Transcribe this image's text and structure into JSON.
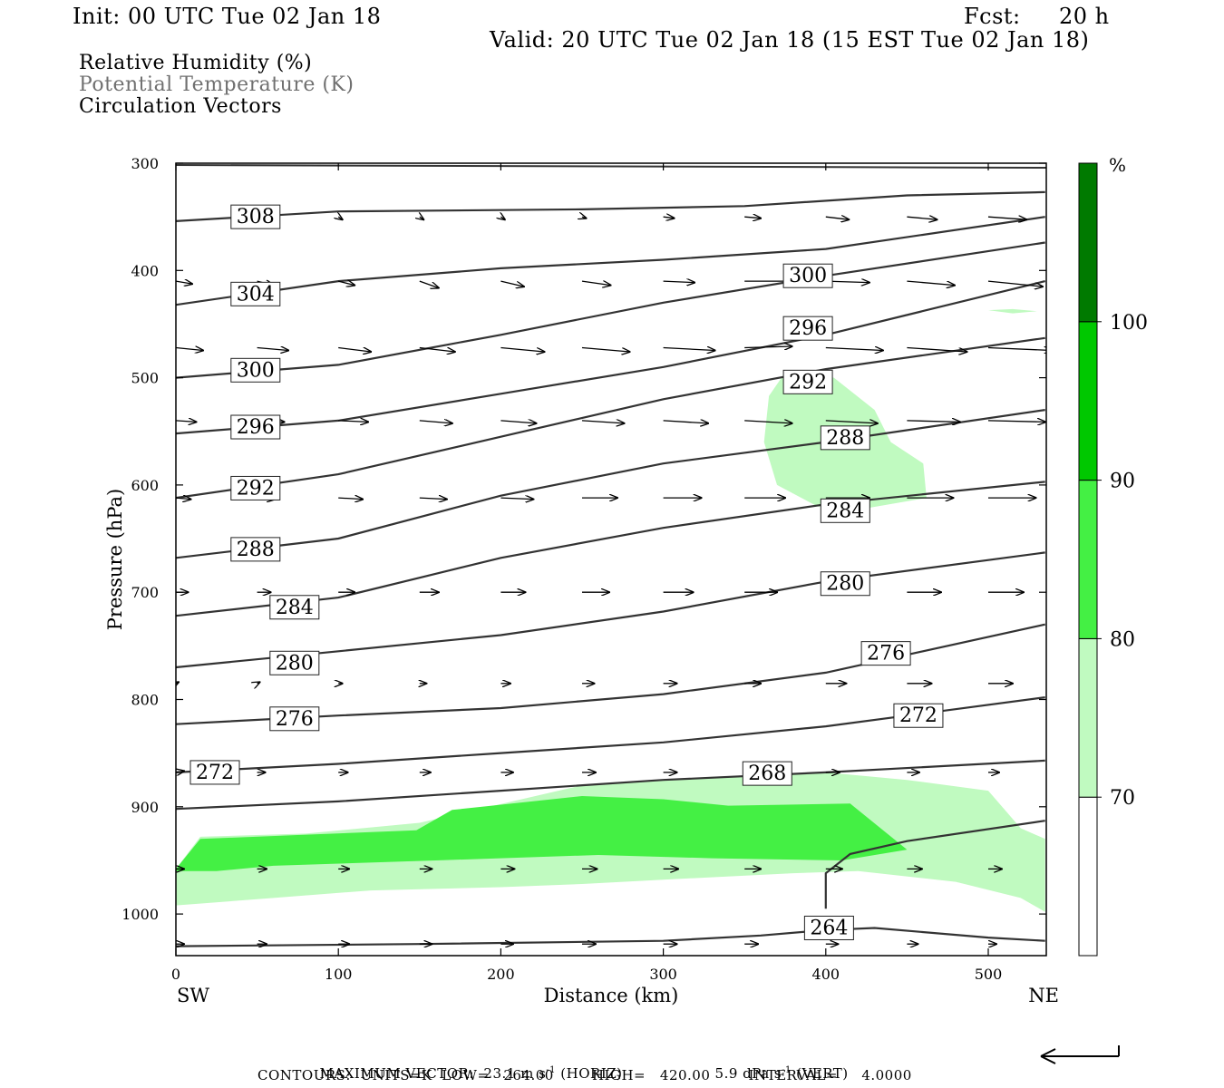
{
  "header": {
    "init": "Init: 00 UTC Tue 02 Jan 18",
    "fcst_label": "Fcst:",
    "fcst_value": "20 h",
    "valid": "Valid: 20 UTC Tue 02 Jan 18 (15 EST Tue 02 Jan 18)"
  },
  "legend": {
    "line1": "Relative Humidity (%)",
    "line2": "Potential Temperature (K)",
    "line3": "Circulation Vectors",
    "line2_color": "#707070"
  },
  "footer": {
    "line1_a": "MAXIMUM VECTOR:  23.1 m s",
    "line1_a_sup": "-1",
    "line1_b": " (HORIZ)",
    "line1_c": "5.9 dPa s",
    "line1_c_sup": "-1",
    "line1_d": " (VERT)",
    "line2": "CONTOURS:  UNITS=K  LOW=   264.00        HIGH=   420.00        INTERVAL=     4.0000"
  },
  "chart_data": {
    "type": "cross-section",
    "xlabel": "Distance (km)",
    "ylabel": "Pressure (hPa)",
    "x_left_label": "SW",
    "x_right_label": "NE",
    "xlim": [
      0,
      535
    ],
    "ylim": [
      1040,
      300
    ],
    "x_ticks": [
      0,
      100,
      200,
      300,
      400,
      500
    ],
    "y_ticks": [
      300,
      400,
      500,
      600,
      700,
      800,
      900,
      1000
    ],
    "colorbar": {
      "unit_label": "%",
      "levels": [
        70,
        80,
        90,
        100
      ],
      "colors": [
        "#ffffff",
        "#c0fac0",
        "#44f044",
        "#00c800",
        "#007a00"
      ]
    },
    "rh_shading": [
      {
        "level": "70-80",
        "color": "#c0fac0",
        "polygon": [
          [
            0,
            958
          ],
          [
            15,
            928
          ],
          [
            80,
            925
          ],
          [
            150,
            915
          ],
          [
            250,
            880
          ],
          [
            330,
            872
          ],
          [
            400,
            868
          ],
          [
            450,
            875
          ],
          [
            500,
            885
          ],
          [
            520,
            920
          ],
          [
            535,
            930
          ],
          [
            535,
            998
          ],
          [
            520,
            985
          ],
          [
            480,
            970
          ],
          [
            420,
            960
          ],
          [
            380,
            962
          ],
          [
            300,
            968
          ],
          [
            250,
            972
          ],
          [
            200,
            975
          ],
          [
            120,
            978
          ],
          [
            60,
            985
          ],
          [
            0,
            992
          ]
        ]
      },
      {
        "level": "80-90",
        "color": "#44f044",
        "polygon": [
          [
            0,
            958
          ],
          [
            15,
            930
          ],
          [
            80,
            926
          ],
          [
            148,
            922
          ],
          [
            170,
            903
          ],
          [
            250,
            890
          ],
          [
            300,
            893
          ],
          [
            340,
            899
          ],
          [
            415,
            897
          ],
          [
            450,
            940
          ],
          [
            410,
            950
          ],
          [
            330,
            948
          ],
          [
            260,
            945
          ],
          [
            160,
            950
          ],
          [
            60,
            955
          ],
          [
            25,
            960
          ],
          [
            0,
            960
          ]
        ]
      },
      {
        "level": "70-80",
        "color": "#c0fac0",
        "polygon": [
          [
            365,
            517
          ],
          [
            375,
            495
          ],
          [
            405,
            500
          ],
          [
            430,
            530
          ],
          [
            440,
            560
          ],
          [
            460,
            580
          ],
          [
            462,
            612
          ],
          [
            420,
            623
          ],
          [
            395,
            620
          ],
          [
            370,
            600
          ],
          [
            362,
            560
          ]
        ]
      },
      {
        "level": "70-80",
        "color": "#c0fac0",
        "polygon": [
          [
            500,
            437
          ],
          [
            515,
            436
          ],
          [
            530,
            438
          ],
          [
            515,
            440
          ]
        ]
      }
    ],
    "theta_contours": [
      {
        "value": 308,
        "points": [
          [
            0,
            354
          ],
          [
            100,
            345
          ],
          [
            250,
            343
          ],
          [
            350,
            340
          ],
          [
            450,
            330
          ],
          [
            535,
            327
          ]
        ]
      },
      {
        "value": 304,
        "points": [
          [
            0,
            432
          ],
          [
            100,
            410
          ],
          [
            200,
            398
          ],
          [
            300,
            390
          ],
          [
            400,
            380
          ],
          [
            535,
            350
          ]
        ]
      },
      {
        "value": 300,
        "points": [
          [
            0,
            500
          ],
          [
            100,
            488
          ],
          [
            200,
            460
          ],
          [
            300,
            430
          ],
          [
            400,
            405
          ],
          [
            535,
            374
          ]
        ]
      },
      {
        "value": 296,
        "points": [
          [
            0,
            552
          ],
          [
            100,
            540
          ],
          [
            200,
            515
          ],
          [
            300,
            490
          ],
          [
            400,
            460
          ],
          [
            535,
            410
          ]
        ]
      },
      {
        "value": 292,
        "points": [
          [
            0,
            612
          ],
          [
            100,
            590
          ],
          [
            200,
            555
          ],
          [
            300,
            520
          ],
          [
            400,
            492
          ],
          [
            535,
            463
          ]
        ]
      },
      {
        "value": 288,
        "points": [
          [
            0,
            668
          ],
          [
            100,
            650
          ],
          [
            200,
            610
          ],
          [
            300,
            580
          ],
          [
            400,
            560
          ],
          [
            535,
            530
          ]
        ]
      },
      {
        "value": 284,
        "points": [
          [
            0,
            722
          ],
          [
            100,
            705
          ],
          [
            200,
            668
          ],
          [
            300,
            640
          ],
          [
            400,
            618
          ],
          [
            535,
            597
          ]
        ]
      },
      {
        "value": 280,
        "points": [
          [
            0,
            770
          ],
          [
            100,
            755
          ],
          [
            200,
            740
          ],
          [
            300,
            718
          ],
          [
            400,
            690
          ],
          [
            535,
            663
          ]
        ]
      },
      {
        "value": 276,
        "points": [
          [
            0,
            823
          ],
          [
            100,
            815
          ],
          [
            200,
            808
          ],
          [
            300,
            795
          ],
          [
            400,
            775
          ],
          [
            535,
            730
          ]
        ]
      },
      {
        "value": 272,
        "points": [
          [
            0,
            868
          ],
          [
            100,
            860
          ],
          [
            200,
            850
          ],
          [
            300,
            840
          ],
          [
            400,
            825
          ],
          [
            535,
            798
          ]
        ]
      },
      {
        "value": 268,
        "points": [
          [
            0,
            902
          ],
          [
            100,
            895
          ],
          [
            200,
            885
          ],
          [
            300,
            875
          ],
          [
            400,
            868
          ],
          [
            535,
            857
          ]
        ]
      },
      {
        "value": 264,
        "points": [
          [
            400,
            995
          ],
          [
            400,
            962
          ],
          [
            415,
            944
          ],
          [
            450,
            932
          ],
          [
            535,
            913
          ]
        ]
      },
      {
        "value": 264,
        "points": [
          [
            0,
            1030
          ],
          [
            150,
            1028
          ],
          [
            300,
            1025
          ],
          [
            360,
            1020
          ],
          [
            400,
            1015
          ],
          [
            430,
            1013
          ],
          [
            500,
            1022
          ],
          [
            535,
            1025
          ]
        ]
      }
    ],
    "contour_labels": [
      {
        "text": "308",
        "x": 49,
        "p": 350
      },
      {
        "text": "304",
        "x": 49,
        "p": 422
      },
      {
        "text": "300",
        "x": 389,
        "p": 405
      },
      {
        "text": "296",
        "x": 389,
        "p": 454
      },
      {
        "text": "300",
        "x": 49,
        "p": 493
      },
      {
        "text": "292",
        "x": 389,
        "p": 504
      },
      {
        "text": "296",
        "x": 49,
        "p": 546
      },
      {
        "text": "288",
        "x": 412,
        "p": 556
      },
      {
        "text": "292",
        "x": 49,
        "p": 603
      },
      {
        "text": "284",
        "x": 412,
        "p": 624
      },
      {
        "text": "288",
        "x": 49,
        "p": 660
      },
      {
        "text": "280",
        "x": 412,
        "p": 692
      },
      {
        "text": "284",
        "x": 73,
        "p": 714
      },
      {
        "text": "276",
        "x": 437,
        "p": 757
      },
      {
        "text": "280",
        "x": 73,
        "p": 766
      },
      {
        "text": "272",
        "x": 457,
        "p": 815
      },
      {
        "text": "276",
        "x": 73,
        "p": 818
      },
      {
        "text": "272",
        "x": 24,
        "p": 868
      },
      {
        "text": "268",
        "x": 364,
        "p": 869
      },
      {
        "text": "264",
        "x": 402,
        "p": 1013
      }
    ],
    "vectors": [
      {
        "p": 350,
        "x": [
          100,
          150,
          200,
          250,
          300,
          350,
          400,
          450,
          500
        ],
        "u": [
          3,
          3,
          3,
          3,
          8,
          12,
          17,
          22,
          28
        ],
        "v": [
          -2,
          -2,
          -2,
          -1,
          -1,
          -1,
          -2,
          -2,
          -2
        ]
      },
      {
        "p": 410,
        "x": [
          0,
          50,
          100,
          150,
          200,
          250,
          300,
          350,
          400,
          450,
          500
        ],
        "u": [
          12,
          12,
          12,
          14,
          17,
          21,
          23,
          36,
          32,
          35,
          40
        ],
        "v": [
          -2,
          -3,
          -3,
          -5,
          -4,
          -3,
          -1,
          0,
          -1,
          -3,
          -4
        ]
      },
      {
        "p": 472,
        "x": [
          0,
          50,
          100,
          150,
          200,
          250,
          300,
          350,
          400,
          450,
          500
        ],
        "u": [
          20,
          23,
          24,
          26,
          32,
          35,
          38,
          35,
          42,
          44,
          47
        ],
        "v": [
          -2,
          -2,
          -3,
          -3,
          -3,
          -3,
          -2,
          1,
          -2,
          -3,
          -2
        ]
      },
      {
        "p": 540,
        "x": [
          0,
          50,
          100,
          150,
          200,
          250,
          300,
          350,
          400,
          450,
          500
        ],
        "u": [
          15,
          20,
          22,
          24,
          26,
          31,
          33,
          35,
          38,
          39,
          42
        ],
        "v": [
          -1,
          -1,
          -1,
          -2,
          -2,
          -2,
          -2,
          -2,
          -2,
          -1,
          -1
        ]
      },
      {
        "p": 612,
        "x": [
          0,
          50,
          100,
          150,
          200,
          250,
          300,
          350,
          400,
          450,
          500
        ],
        "u": [
          11,
          13,
          18,
          20,
          24,
          26,
          28,
          30,
          32,
          34,
          35
        ],
        "v": [
          -1,
          -1,
          -1,
          -1,
          -1,
          0,
          0,
          0,
          0,
          0,
          0
        ]
      },
      {
        "p": 700,
        "x": [
          0,
          50,
          100,
          150,
          200,
          250,
          300,
          350,
          400,
          450,
          500
        ],
        "u": [
          9,
          10,
          12,
          14,
          18,
          20,
          22,
          24,
          26,
          25,
          26
        ],
        "v": [
          0,
          0,
          0,
          0,
          0,
          0,
          0,
          0,
          0,
          0,
          0
        ]
      },
      {
        "p": 785,
        "x": [
          0,
          50,
          100,
          150,
          200,
          250,
          300,
          350,
          400,
          450,
          500
        ],
        "u": [
          2,
          2,
          3,
          5,
          7,
          9,
          10,
          12,
          15,
          18,
          18
        ],
        "v": [
          1,
          1,
          0,
          0,
          0,
          0,
          0,
          0,
          0,
          0,
          0
        ]
      },
      {
        "p": 868,
        "x": [
          0,
          50,
          100,
          150,
          200,
          250,
          300,
          350,
          400,
          450,
          500
        ],
        "u": [
          6,
          6,
          7,
          8,
          9,
          10,
          10,
          10,
          10,
          9,
          8
        ],
        "v": [
          1,
          0,
          0,
          0,
          0,
          0,
          0,
          0,
          0,
          0,
          0
        ]
      },
      {
        "p": 958,
        "x": [
          0,
          50,
          100,
          150,
          200,
          250,
          300,
          350,
          400,
          450,
          500
        ],
        "u": [
          6,
          7,
          8,
          9,
          10,
          11,
          11,
          12,
          12,
          11,
          10
        ],
        "v": [
          0,
          0,
          0,
          0,
          0,
          0,
          0,
          0,
          0,
          0,
          0
        ]
      },
      {
        "p": 1028,
        "x": [
          0,
          50,
          100,
          150,
          200,
          250,
          300,
          350,
          400,
          450,
          500
        ],
        "u": [
          6,
          7,
          8,
          9,
          9,
          10,
          10,
          10,
          9,
          8,
          6
        ],
        "v": [
          0,
          0,
          0,
          0,
          0,
          0,
          0,
          0,
          0,
          0,
          0
        ]
      }
    ],
    "reference_vector": "arrow-left-icon"
  }
}
